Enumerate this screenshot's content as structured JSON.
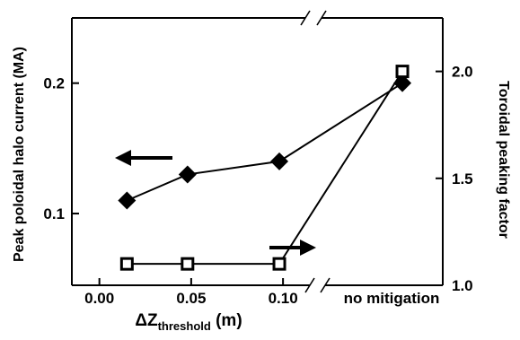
{
  "chart_data": {
    "type": "line",
    "xlabel_main": "ΔZ",
    "xlabel_sub": "threshold",
    "xlabel_unit": " (m)",
    "ylabel_left": "Peak poloidal halo current (MA)",
    "ylabel_right": "Toroidal peaking factor",
    "x_ticks": [
      "0.00",
      "0.05",
      "0.10"
    ],
    "x_extra_label": "no mitigation",
    "y_left_ticks": [
      "0.1",
      "0.2"
    ],
    "y_left_range": [
      0.045,
      0.25
    ],
    "y_right_ticks": [
      "1.0",
      "1.5",
      "2.0"
    ],
    "y_right_range": [
      1.0,
      2.25
    ],
    "x_range": [
      -0.015,
      0.187
    ],
    "axis_break": true,
    "grid": false,
    "series": [
      {
        "marker": "filled-diamond",
        "axis": "left",
        "x": [
          0.015,
          0.048,
          0.098,
          0.165
        ],
        "y": [
          0.11,
          0.13,
          0.14,
          0.2
        ]
      },
      {
        "marker": "open-square",
        "axis": "right",
        "x": [
          0.015,
          0.048,
          0.098,
          0.165
        ],
        "y": [
          1.1,
          1.1,
          1.1,
          2.0
        ]
      }
    ]
  }
}
